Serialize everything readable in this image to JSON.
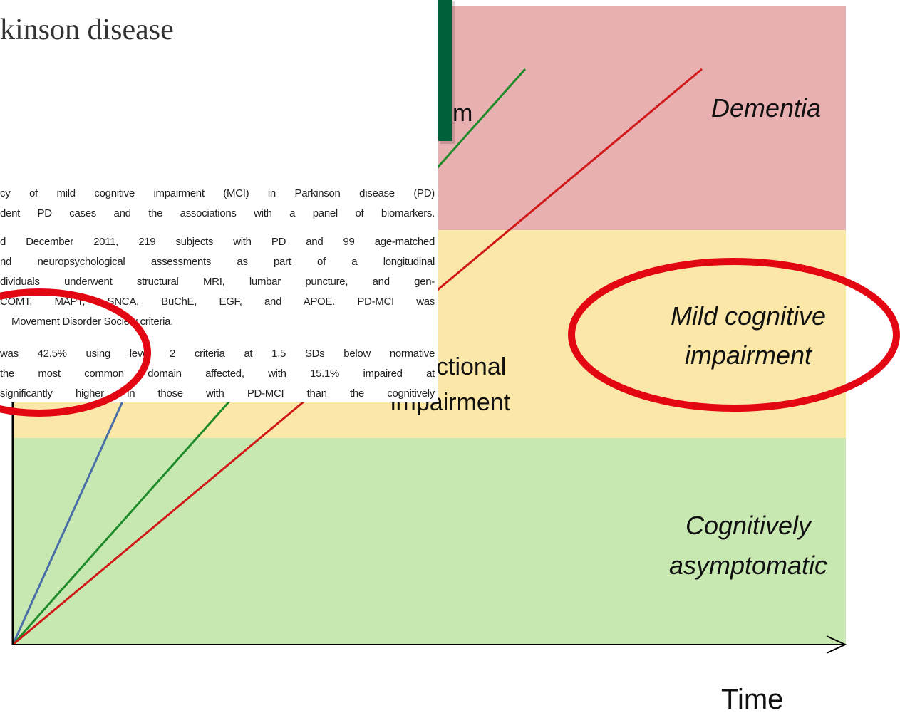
{
  "header": {
    "title": "kinson disease"
  },
  "abstract": {
    "paragraphs": [
      [
        "cy of mild cognitive impairment (MCI) in Parkinson disease (PD)",
        "dent PD cases and the associations with a panel of biomarkers."
      ],
      [
        "d December 2011, 219 subjects with PD and 99 age-matched",
        "nd neuropsychological assessments as part of a longitudinal",
        "dividuals underwent structural MRI, lumbar puncture, and gen-",
        "COMT, MAPT, SNCA, BuChE, EGF, and APOE. PD-MCI was",
        "Movement Disorder Society criteria."
      ],
      [
        "was 42.5% using level 2 criteria at 1.5 SDs below normative",
        "the most common domain affected, with 15.1% impaired at",
        "significantly higher in those with PD-MCI than the cognitively"
      ]
    ]
  },
  "diagram": {
    "zones": {
      "dementia": "Dementia",
      "mci": [
        "Mild cognitive",
        "impairment"
      ],
      "asymptomatic": [
        "Cognitively",
        "asymptomatic"
      ]
    },
    "line_labels": [
      "m",
      "ctional",
      "impairment"
    ],
    "x_axis_label": "Time"
  }
}
